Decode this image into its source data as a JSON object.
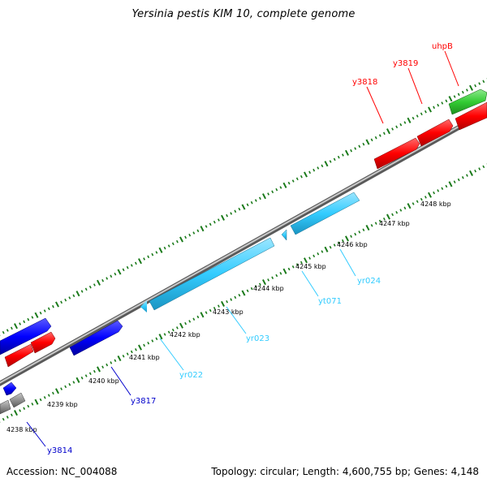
{
  "title": "Yersinia pestis KIM 10, complete genome",
  "footer": {
    "accession": "Accession: NC_004088",
    "topology": "Topology: circular; Length: 4,600,755 bp; Genes: 4,148"
  },
  "colors": {
    "forward_gene": "#ff0000",
    "reverse_gene": "#0000ff",
    "rna_gene": "#33ccff",
    "other_gene": "#33cc33",
    "tick": "#1a7a1a",
    "backbone": "#9a9a9a"
  },
  "scale": {
    "ticks": [
      {
        "kbp": 4238,
        "label": "4238 kbp"
      },
      {
        "kbp": 4239,
        "label": "4239 kbp"
      },
      {
        "kbp": 4240,
        "label": "4240 kbp"
      },
      {
        "kbp": 4241,
        "label": "4241 kbp"
      },
      {
        "kbp": 4242,
        "label": "4242 kbp"
      },
      {
        "kbp": 4243,
        "label": "4243 kbp"
      },
      {
        "kbp": 4244,
        "label": "4244 kbp"
      },
      {
        "kbp": 4245,
        "label": "4245 kbp"
      },
      {
        "kbp": 4246,
        "label": "4246 kbp"
      },
      {
        "kbp": 4247,
        "label": "4247 kbp"
      },
      {
        "kbp": 4248,
        "label": "4248 kbp"
      }
    ]
  },
  "gene_labels": [
    {
      "name": "y3818",
      "color": "#ff0000"
    },
    {
      "name": "y3819",
      "color": "#ff0000"
    },
    {
      "name": "uhpB",
      "color": "#ff0000"
    },
    {
      "name": "yr024",
      "color": "#33ccff"
    },
    {
      "name": "yt071",
      "color": "#33ccff"
    },
    {
      "name": "yr023",
      "color": "#33ccff"
    },
    {
      "name": "yr022",
      "color": "#33ccff"
    },
    {
      "name": "y3817",
      "color": "#0000cc"
    },
    {
      "name": "y3814",
      "color": "#0000cc"
    }
  ]
}
